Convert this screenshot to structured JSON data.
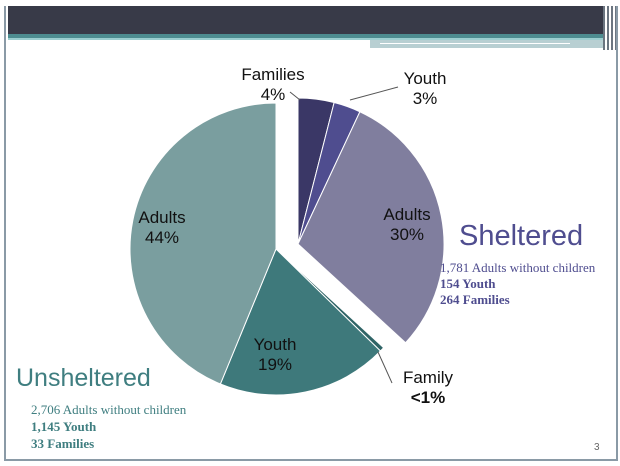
{
  "chart_data": [
    {
      "type": "pie",
      "group": "Sheltered",
      "slices": [
        {
          "label": "Families",
          "value": 4,
          "display": "4%",
          "color": "#3a3766"
        },
        {
          "label": "Youth",
          "value": 3,
          "display": "3%",
          "color": "#4f4d8f"
        },
        {
          "label": "Adults",
          "value": 30,
          "display": "30%",
          "color": "#807e9e"
        }
      ]
    },
    {
      "type": "pie",
      "group": "Unsheltered",
      "slices": [
        {
          "label": "Family",
          "value": 0.5,
          "display": "<1%",
          "color": "#2f6466"
        },
        {
          "label": "Youth",
          "value": 19,
          "display": "19%",
          "color": "#3e797b"
        },
        {
          "label": "Adults",
          "value": 44,
          "display": "44%",
          "color": "#7a9e9f"
        }
      ]
    }
  ],
  "sheltered": {
    "title": "Sheltered",
    "lines": [
      "1,781 Adults without children",
      "154 Youth",
      "264 Families"
    ]
  },
  "unsheltered": {
    "title": "Unsheltered",
    "lines": [
      "2,706 Adults without children",
      "1,145 Youth",
      "33 Families"
    ]
  },
  "page_number": "3"
}
